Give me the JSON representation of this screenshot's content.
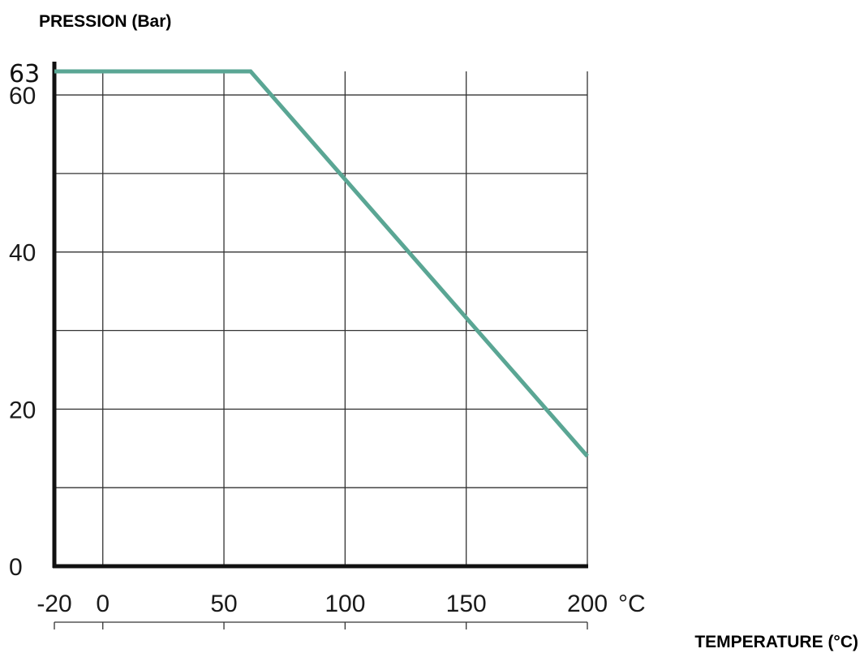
{
  "chart_data": {
    "type": "line",
    "ylabel": "PRESSION (Bar)",
    "xlabel": "TEMPERATURE (°C)",
    "x_unit": "°C",
    "x_ticks": [
      {
        "value": -20,
        "label": "-20"
      },
      {
        "value": 0,
        "label": "0"
      },
      {
        "value": 50,
        "label": "50"
      },
      {
        "value": 100,
        "label": "100"
      },
      {
        "value": 150,
        "label": "150"
      },
      {
        "value": 200,
        "label": "200"
      }
    ],
    "y_ticks": [
      {
        "value": 0,
        "label": "0"
      },
      {
        "value": 20,
        "label": "20"
      },
      {
        "value": 40,
        "label": "40"
      },
      {
        "value": 60,
        "label": "60"
      },
      {
        "value": 63,
        "label": "63"
      }
    ],
    "x_gridlines": [
      0,
      50,
      100,
      150,
      200
    ],
    "y_gridlines": [
      10,
      20,
      30,
      40,
      50,
      60
    ],
    "xlim": [
      -20,
      200
    ],
    "ylim": [
      0,
      63
    ],
    "grid": true,
    "series": [
      {
        "x": [
          -20,
          61,
          200
        ],
        "y": [
          63,
          63,
          14
        ]
      }
    ],
    "line_color": "#5aa694"
  }
}
